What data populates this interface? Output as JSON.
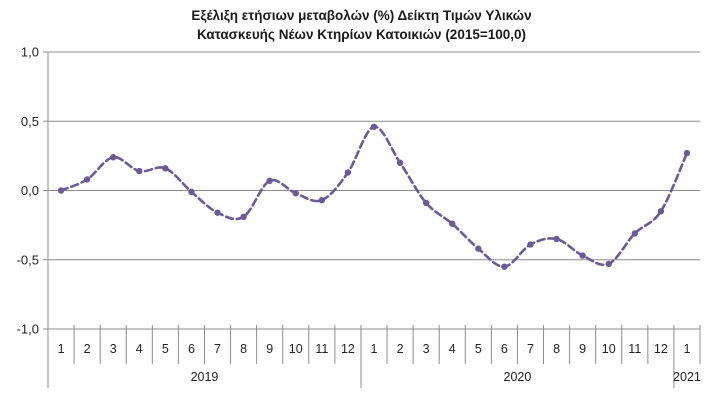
{
  "chart_data": {
    "type": "line",
    "title_lines": [
      "Εξέλιξη ετήσιων μεταβολών (%) Δείκτη Τιμών Υλικών",
      "Κατασκευής Νέων Κτηρίων Κατοικιών (2015=100,0)"
    ],
    "xlabel": "",
    "ylabel": "",
    "ylim": [
      -1.0,
      1.0
    ],
    "yticks": [
      1.0,
      0.5,
      0.0,
      -0.5,
      -1.0
    ],
    "ytick_labels": [
      "1,0",
      "0,5",
      "0,0",
      "-0,5",
      "-1,0"
    ],
    "grid": true,
    "months": [
      "1",
      "2",
      "3",
      "4",
      "5",
      "6",
      "7",
      "8",
      "9",
      "10",
      "11",
      "12",
      "1",
      "2",
      "3",
      "4",
      "5",
      "6",
      "7",
      "8",
      "9",
      "10",
      "11",
      "12",
      "1"
    ],
    "years": [
      {
        "label": "2019",
        "start": 0,
        "end": 11
      },
      {
        "label": "2020",
        "start": 12,
        "end": 23
      },
      {
        "label": "2021",
        "start": 24,
        "end": 24
      }
    ],
    "series": [
      {
        "color": "#6b5b95",
        "style": "dashed",
        "values": [
          0.0,
          0.08,
          0.24,
          0.14,
          0.16,
          -0.01,
          -0.16,
          -0.19,
          0.07,
          -0.02,
          -0.07,
          0.13,
          0.46,
          0.2,
          -0.09,
          -0.24,
          -0.42,
          -0.55,
          -0.39,
          -0.35,
          -0.47,
          -0.53,
          -0.31,
          -0.15,
          0.27
        ]
      }
    ]
  }
}
